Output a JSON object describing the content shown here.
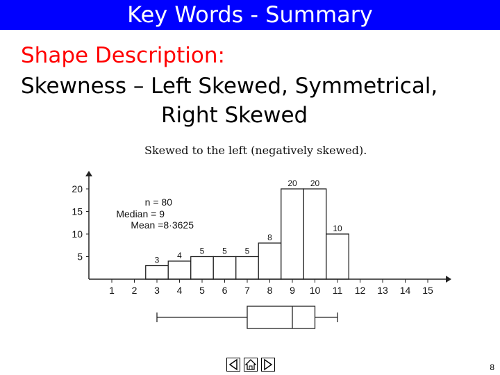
{
  "slide": {
    "title": "Key Words - Summary",
    "heading": "Shape Description:",
    "line1": "Skewness – Left Skewed, Symmetrical,",
    "line2": "Right Skewed",
    "page_number": "8"
  },
  "icons": [
    "prev-arrow-icon",
    "home-icon",
    "next-arrow-icon"
  ],
  "colors": {
    "title_bar": "#0000ff",
    "heading": "#ff0000"
  },
  "chart_data": {
    "type": "bar",
    "title": "Skewed to the left  (negatively skewed).",
    "categories": [
      1,
      2,
      3,
      4,
      5,
      6,
      7,
      8,
      9,
      10,
      11,
      12,
      13,
      14,
      15
    ],
    "values": [
      0,
      0,
      3,
      4,
      5,
      5,
      5,
      8,
      20,
      20,
      10,
      0,
      0,
      0,
      0
    ],
    "data_labels": [
      "",
      "",
      "3",
      "4",
      "5",
      "5",
      "5",
      "8",
      "20",
      "20",
      "10",
      "",
      "",
      "",
      ""
    ],
    "y_ticks": [
      5,
      10,
      15,
      20
    ],
    "x_ticks": [
      1,
      2,
      3,
      4,
      5,
      6,
      7,
      8,
      9,
      10,
      11,
      12,
      13,
      14,
      15
    ],
    "annotations": [
      "n = 80",
      "Median = 9",
      "Mean =8·3625"
    ],
    "boxplot": {
      "min": 3,
      "q1": 7,
      "median": 9,
      "q3": 10,
      "max": 11
    },
    "grid": false
  }
}
